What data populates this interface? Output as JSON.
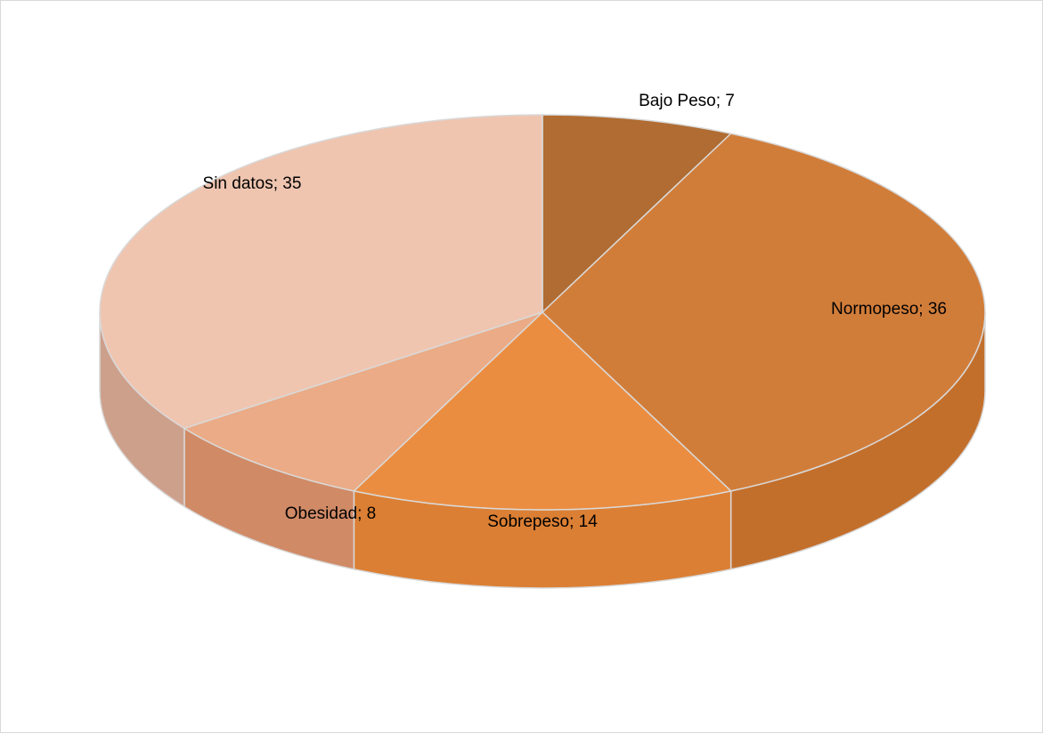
{
  "chart_data": {
    "type": "pie",
    "style": "3d",
    "categories": [
      "Bajo Peso",
      "Normopeso",
      "Sobrepeso",
      "Obesidad",
      "Sin datos"
    ],
    "values": [
      7,
      36,
      14,
      8,
      35
    ],
    "data_labels": [
      "Bajo Peso; 7",
      "Normopeso; 36",
      "Sobrepeso; 14",
      "Obesidad; 8",
      "Sin datos; 35"
    ],
    "colors": [
      "#b06c32",
      "#d17d3a",
      "#eb8d40",
      "#eaab86",
      "#efc5b0"
    ],
    "side_colors": [
      "#9a5a26",
      "#c36f2c",
      "#db7f34",
      "#d08a66",
      "#cda08c"
    ],
    "slice_border": "#d9d9d9",
    "title": "",
    "legend": "none"
  }
}
